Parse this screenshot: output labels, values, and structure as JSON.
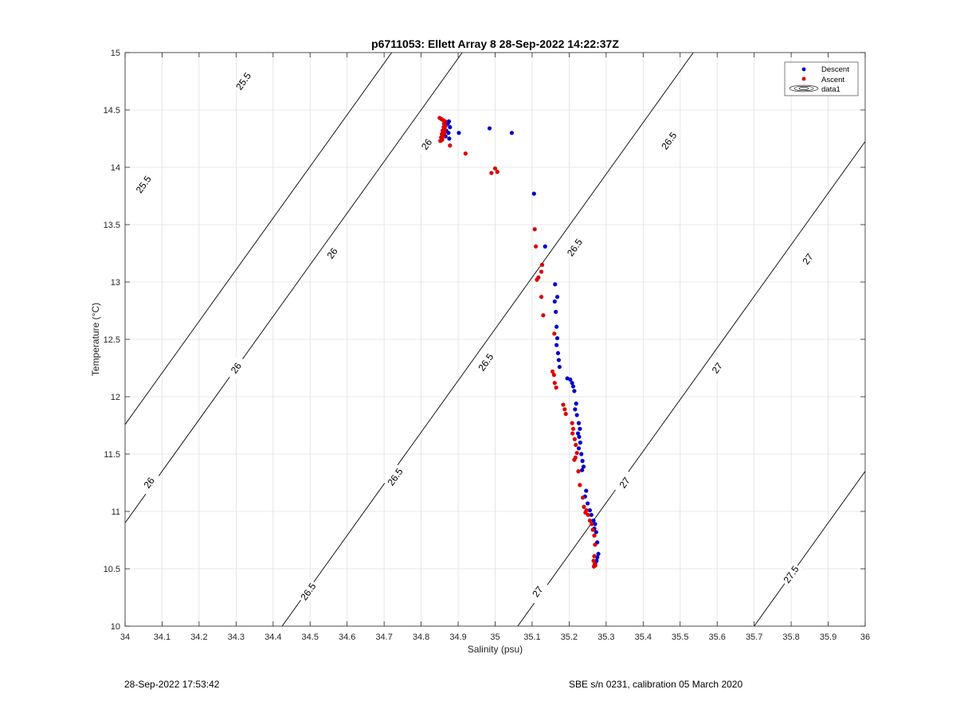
{
  "chart_data": {
    "type": "scatter",
    "title": "p6711053: Ellett Array 8 28-Sep-2022 14:22:37Z",
    "xlabel": "Salinity (psu)",
    "ylabel": "Temperature (°C)",
    "xlim": [
      34,
      36
    ],
    "ylim": [
      10,
      15
    ],
    "x_ticks": [
      34,
      34.1,
      34.2,
      34.3,
      34.4,
      34.5,
      34.6,
      34.7,
      34.8,
      34.9,
      35,
      35.1,
      35.2,
      35.3,
      35.4,
      35.5,
      35.6,
      35.7,
      35.8,
      35.9,
      36
    ],
    "y_ticks": [
      10,
      10.5,
      11,
      11.5,
      12,
      12.5,
      13,
      13.5,
      14,
      14.5,
      15
    ],
    "grid": true,
    "legend_position": "top-right",
    "legend": [
      "Descent",
      "Ascent",
      "data1"
    ],
    "colors": {
      "descent": "#0000cc",
      "ascent": "#dd0000",
      "contour": "#000000",
      "grid": "#e0e0e0"
    },
    "series": [
      {
        "name": "Descent",
        "color": "#0000cc",
        "points": [
          [
            34.875,
            14.4
          ],
          [
            34.872,
            14.38
          ],
          [
            34.878,
            14.35
          ],
          [
            34.868,
            14.32
          ],
          [
            34.874,
            14.3
          ],
          [
            34.866,
            14.27
          ],
          [
            34.876,
            14.25
          ],
          [
            34.902,
            14.3
          ],
          [
            34.985,
            14.34
          ],
          [
            35.045,
            14.3
          ],
          [
            35.105,
            13.77
          ],
          [
            35.135,
            13.31
          ],
          [
            35.162,
            12.98
          ],
          [
            35.168,
            12.87
          ],
          [
            35.161,
            12.83
          ],
          [
            35.164,
            12.74
          ],
          [
            35.166,
            12.61
          ],
          [
            35.168,
            12.51
          ],
          [
            35.166,
            12.45
          ],
          [
            35.17,
            12.38
          ],
          [
            35.172,
            12.32
          ],
          [
            35.174,
            12.26
          ],
          [
            35.195,
            12.16
          ],
          [
            35.203,
            12.15
          ],
          [
            35.208,
            12.12
          ],
          [
            35.211,
            12.09
          ],
          [
            35.214,
            12.05
          ],
          [
            35.219,
            11.94
          ],
          [
            35.216,
            11.89
          ],
          [
            35.221,
            11.84
          ],
          [
            35.226,
            11.77
          ],
          [
            35.229,
            11.72
          ],
          [
            35.224,
            11.68
          ],
          [
            35.227,
            11.65
          ],
          [
            35.23,
            11.6
          ],
          [
            35.226,
            11.55
          ],
          [
            35.233,
            11.5
          ],
          [
            35.236,
            11.44
          ],
          [
            35.239,
            11.39
          ],
          [
            35.235,
            11.36
          ],
          [
            35.246,
            11.18
          ],
          [
            35.243,
            11.13
          ],
          [
            35.25,
            11.07
          ],
          [
            35.256,
            11.01
          ],
          [
            35.26,
            10.97
          ],
          [
            35.266,
            10.92
          ],
          [
            35.27,
            10.89
          ],
          [
            35.268,
            10.85
          ],
          [
            35.273,
            10.82
          ],
          [
            35.276,
            10.73
          ],
          [
            35.279,
            10.63
          ],
          [
            35.276,
            10.6
          ],
          [
            35.274,
            10.57
          ],
          [
            35.272,
            10.56
          ]
        ]
      },
      {
        "name": "Ascent",
        "color": "#dd0000",
        "points": [
          [
            34.85,
            14.43
          ],
          [
            34.855,
            14.42
          ],
          [
            34.86,
            14.41
          ],
          [
            34.865,
            14.4
          ],
          [
            34.862,
            14.38
          ],
          [
            34.866,
            14.36
          ],
          [
            34.861,
            14.35
          ],
          [
            34.864,
            14.33
          ],
          [
            34.858,
            14.32
          ],
          [
            34.863,
            14.3
          ],
          [
            34.856,
            14.29
          ],
          [
            34.86,
            14.27
          ],
          [
            34.854,
            14.26
          ],
          [
            34.857,
            14.24
          ],
          [
            34.852,
            14.23
          ],
          [
            34.878,
            14.19
          ],
          [
            34.92,
            14.12
          ],
          [
            35.0,
            13.99
          ],
          [
            34.99,
            13.95
          ],
          [
            35.006,
            13.96
          ],
          [
            35.107,
            13.46
          ],
          [
            35.11,
            13.31
          ],
          [
            35.127,
            13.15
          ],
          [
            35.125,
            13.09
          ],
          [
            35.117,
            13.04
          ],
          [
            35.113,
            13.02
          ],
          [
            35.125,
            12.87
          ],
          [
            35.13,
            12.71
          ],
          [
            35.16,
            12.55
          ],
          [
            35.155,
            12.22
          ],
          [
            35.159,
            12.19
          ],
          [
            35.161,
            12.12
          ],
          [
            35.165,
            12.08
          ],
          [
            35.184,
            11.93
          ],
          [
            35.188,
            11.89
          ],
          [
            35.191,
            11.85
          ],
          [
            35.208,
            11.77
          ],
          [
            35.211,
            11.72
          ],
          [
            35.209,
            11.68
          ],
          [
            35.215,
            11.63
          ],
          [
            35.218,
            11.58
          ],
          [
            35.221,
            11.51
          ],
          [
            35.217,
            11.47
          ],
          [
            35.214,
            11.45
          ],
          [
            35.225,
            11.35
          ],
          [
            35.229,
            11.23
          ],
          [
            35.237,
            11.12
          ],
          [
            35.24,
            11.04
          ],
          [
            35.247,
            11.01
          ],
          [
            35.244,
            10.99
          ],
          [
            35.251,
            10.97
          ],
          [
            35.256,
            10.92
          ],
          [
            35.261,
            10.89
          ],
          [
            35.264,
            10.84
          ],
          [
            35.268,
            10.79
          ],
          [
            35.27,
            10.71
          ],
          [
            35.268,
            10.61
          ],
          [
            35.266,
            10.57
          ],
          [
            35.269,
            10.54
          ],
          [
            35.271,
            10.53
          ],
          [
            35.267,
            10.52
          ]
        ]
      }
    ],
    "isopycnals": [
      {
        "label": "25.5",
        "x0": 33.6095,
        "slope": 4.5
      },
      {
        "label": "26",
        "x0": 33.8,
        "slope": 4.5
      },
      {
        "label": "26.5",
        "x0": 34.4244,
        "slope": 4.5
      },
      {
        "label": "27",
        "x0": 35.0611,
        "slope": 4.5
      },
      {
        "label": "27.5",
        "x0": 35.7,
        "slope": 4.5
      }
    ],
    "contour_labels": [
      {
        "text": "25.5",
        "s": 34.32,
        "t": 14.75
      },
      {
        "text": "25.5",
        "s": 34.05,
        "t": 13.85
      },
      {
        "text": "26",
        "s": 34.815,
        "t": 14.2
      },
      {
        "text": "26",
        "s": 34.56,
        "t": 13.25
      },
      {
        "text": "26",
        "s": 34.3,
        "t": 12.25
      },
      {
        "text": "26",
        "s": 34.065,
        "t": 11.25
      },
      {
        "text": "26.5",
        "s": 35.47,
        "t": 14.23
      },
      {
        "text": "26.5",
        "s": 35.215,
        "t": 13.3
      },
      {
        "text": "26.5",
        "s": 34.975,
        "t": 12.3
      },
      {
        "text": "26.5",
        "s": 34.73,
        "t": 11.3
      },
      {
        "text": "26.5",
        "s": 34.495,
        "t": 10.3
      },
      {
        "text": "27",
        "s": 35.845,
        "t": 13.2
      },
      {
        "text": "27",
        "s": 35.6,
        "t": 12.25
      },
      {
        "text": "27",
        "s": 35.35,
        "t": 11.25
      },
      {
        "text": "27",
        "s": 35.115,
        "t": 10.3
      },
      {
        "text": "27.5",
        "s": 35.8,
        "t": 10.45
      }
    ]
  },
  "footer": {
    "timestamp": "28-Sep-2022 17:53:42",
    "sensor_info": "SBE s/n 0231, calibration 05 March 2020"
  }
}
